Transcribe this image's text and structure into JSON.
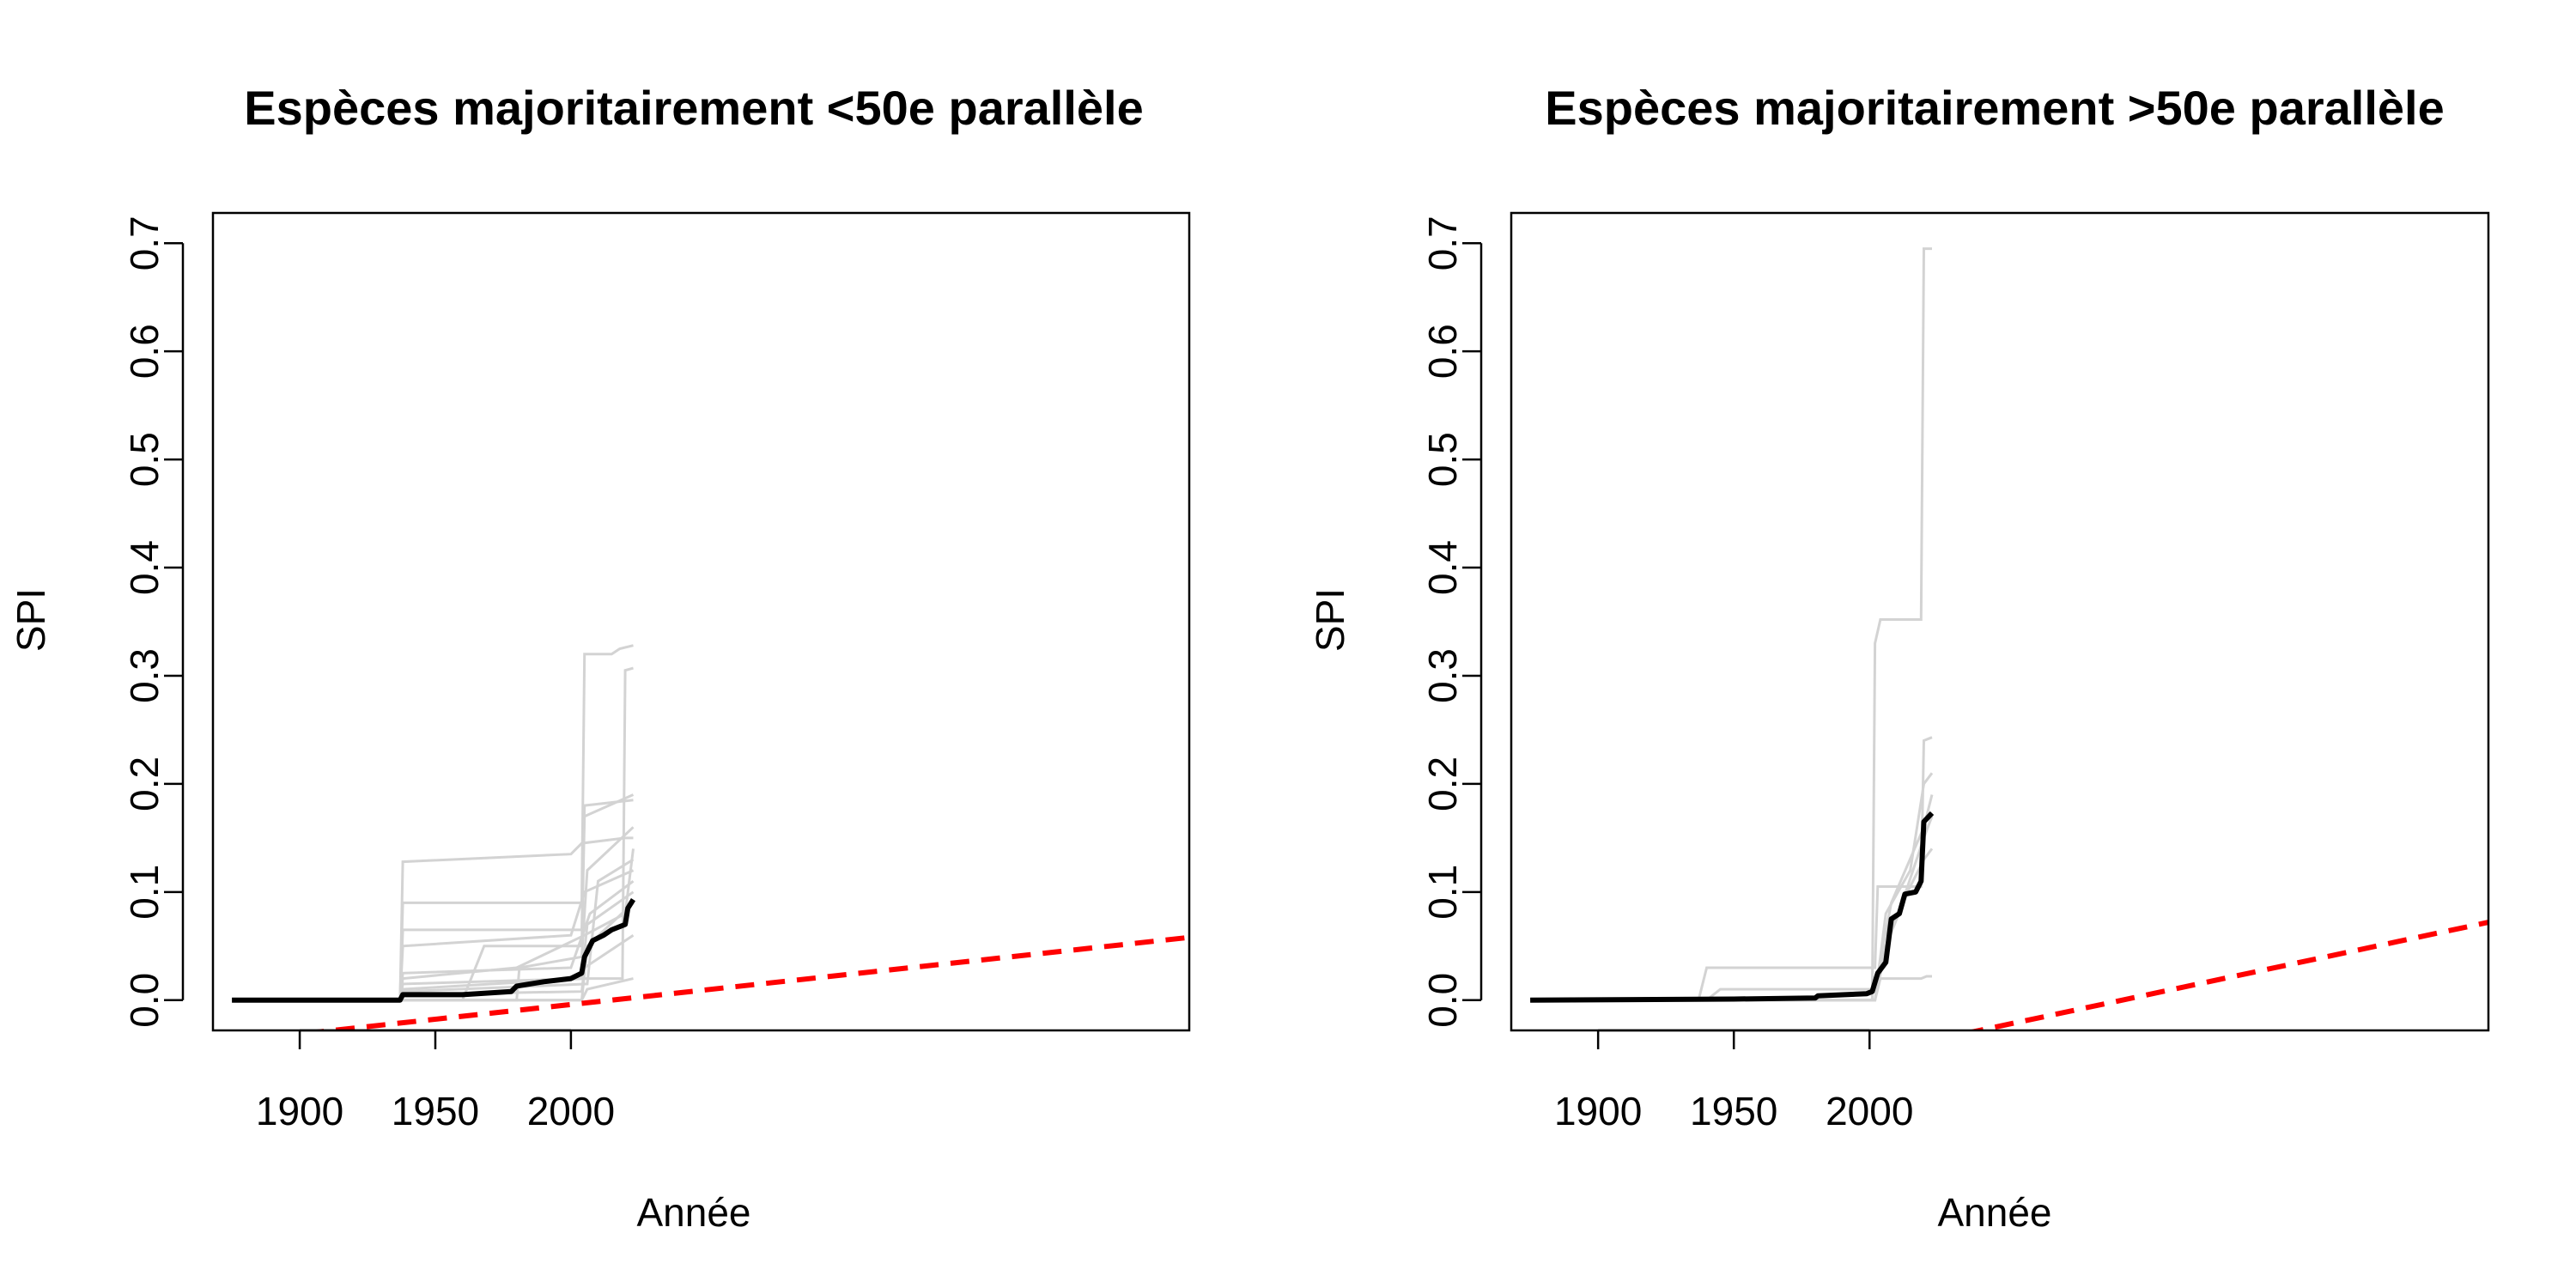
{
  "chart_data": [
    {
      "type": "line",
      "title": "Espèces majoritairement <50e parallèle",
      "xlabel": "Année",
      "ylabel": "SPI",
      "xlim": [
        1868,
        2228
      ],
      "ylim": [
        -0.028,
        0.728
      ],
      "xticks": [
        "1900",
        "1950",
        "2000"
      ],
      "yticks": [
        "0.0",
        "0.1",
        "0.2",
        "0.3",
        "0.4",
        "0.5",
        "0.6",
        "0.7"
      ],
      "grid": false,
      "legend": "none",
      "series": [
        {
          "role": "bootstrap",
          "color": "#d3d3d3",
          "lines": [
            [
              [
                1875,
                0
              ],
              [
                1937,
                0
              ],
              [
                1938,
                0.128
              ],
              [
                2000,
                0.135
              ],
              [
                2004,
                0.145
              ],
              [
                2020,
                0.15
              ],
              [
                2023,
                0.15
              ]
            ],
            [
              [
                1875,
                0
              ],
              [
                1937,
                0
              ],
              [
                1938,
                0.09
              ],
              [
                2004,
                0.09
              ],
              [
                2005,
                0.32
              ],
              [
                2015,
                0.32
              ],
              [
                2018,
                0.325
              ],
              [
                2023,
                0.328
              ]
            ],
            [
              [
                1875,
                0
              ],
              [
                1937,
                0
              ],
              [
                1938,
                0.065
              ],
              [
                2004,
                0.065
              ],
              [
                2005,
                0.18
              ],
              [
                2023,
                0.185
              ]
            ],
            [
              [
                1875,
                0
              ],
              [
                1937,
                0
              ],
              [
                1938,
                0.05
              ],
              [
                2000,
                0.06
              ],
              [
                2005,
                0.1
              ],
              [
                2023,
                0.12
              ]
            ],
            [
              [
                1875,
                0
              ],
              [
                1960,
                0
              ],
              [
                1968,
                0.05
              ],
              [
                2004,
                0.05
              ],
              [
                2005,
                0.17
              ],
              [
                2023,
                0.19
              ]
            ],
            [
              [
                1875,
                0
              ],
              [
                1937,
                0
              ],
              [
                1938,
                0.02
              ],
              [
                1980,
                0.03
              ],
              [
                2005,
                0.06
              ],
              [
                2020,
                0.08
              ],
              [
                2023,
                0.14
              ]
            ],
            [
              [
                1875,
                0
              ],
              [
                1937,
                0
              ],
              [
                1938,
                0.01
              ],
              [
                2005,
                0.02
              ],
              [
                2019,
                0.02
              ],
              [
                2020,
                0.305
              ],
              [
                2023,
                0.307
              ]
            ],
            [
              [
                1875,
                0
              ],
              [
                1937,
                0
              ],
              [
                1938,
                0.015
              ],
              [
                2004,
                0.02
              ],
              [
                2006,
                0.07
              ],
              [
                2023,
                0.1
              ]
            ],
            [
              [
                1875,
                0
              ],
              [
                1937,
                0
              ],
              [
                1938,
                0.005
              ],
              [
                2004,
                0.008
              ],
              [
                2005,
                0.03
              ],
              [
                2023,
                0.06
              ]
            ],
            [
              [
                1875,
                0
              ],
              [
                1980,
                0
              ],
              [
                1981,
                0.03
              ],
              [
                2004,
                0.04
              ],
              [
                2006,
                0.12
              ],
              [
                2023,
                0.16
              ]
            ],
            [
              [
                1875,
                0
              ],
              [
                2004,
                0
              ],
              [
                2006,
                0.05
              ],
              [
                2023,
                0.09
              ]
            ],
            [
              [
                1875,
                0
              ],
              [
                2004,
                0
              ],
              [
                2006,
                0.01
              ],
              [
                2023,
                0.02
              ]
            ],
            [
              [
                1875,
                0
              ],
              [
                1937,
                0
              ],
              [
                1938,
                0.008
              ],
              [
                2006,
                0.015
              ],
              [
                2010,
                0.11
              ],
              [
                2023,
                0.13
              ]
            ],
            [
              [
                1875,
                0
              ],
              [
                1937,
                0
              ],
              [
                1938,
                0.025
              ],
              [
                2000,
                0.03
              ],
              [
                2007,
                0.08
              ],
              [
                2023,
                0.11
              ]
            ]
          ]
        },
        {
          "role": "mean",
          "color": "#000000",
          "values": [
            [
              1875,
              0
            ],
            [
              1937,
              0
            ],
            [
              1938,
              0.005
            ],
            [
              1960,
              0.005
            ],
            [
              1978,
              0.008
            ],
            [
              1980,
              0.013
            ],
            [
              1990,
              0.017
            ],
            [
              2000,
              0.02
            ],
            [
              2004,
              0.025
            ],
            [
              2005,
              0.04
            ],
            [
              2008,
              0.055
            ],
            [
              2012,
              0.06
            ],
            [
              2015,
              0.065
            ],
            [
              2020,
              0.07
            ],
            [
              2021,
              0.085
            ],
            [
              2023,
              0.093
            ]
          ]
        },
        {
          "role": "trend",
          "color": "#ff0000",
          "values": [
            [
              1868,
              -0.04
            ],
            [
              2228,
              0.058
            ]
          ]
        }
      ]
    },
    {
      "type": "line",
      "title": "Espèces majoritairement >50e parallèle",
      "xlabel": "Année",
      "ylabel": "SPI",
      "xlim": [
        1868,
        2228
      ],
      "ylim": [
        -0.028,
        0.728
      ],
      "xticks": [
        "1900",
        "1950",
        "2000"
      ],
      "yticks": [
        "0.0",
        "0.1",
        "0.2",
        "0.3",
        "0.4",
        "0.5",
        "0.6",
        "0.7"
      ],
      "grid": false,
      "legend": "none",
      "series": [
        {
          "role": "bootstrap",
          "color": "#d3d3d3",
          "lines": [
            [
              [
                1875,
                0
              ],
              [
                2001,
                0
              ],
              [
                2002,
                0.33
              ],
              [
                2004,
                0.352
              ],
              [
                2019,
                0.352
              ],
              [
                2020,
                0.695
              ],
              [
                2023,
                0.695
              ]
            ],
            [
              [
                1875,
                0
              ],
              [
                1937,
                0
              ],
              [
                1940,
                0.03
              ],
              [
                2002,
                0.03
              ],
              [
                2003,
                0.105
              ],
              [
                2019,
                0.105
              ],
              [
                2020,
                0.24
              ],
              [
                2023,
                0.243
              ]
            ],
            [
              [
                1875,
                0
              ],
              [
                2002,
                0
              ],
              [
                2004,
                0.02
              ],
              [
                2019,
                0.02
              ],
              [
                2021,
                0.022
              ],
              [
                2023,
                0.022
              ]
            ],
            [
              [
                1875,
                0
              ],
              [
                2002,
                0
              ],
              [
                2006,
                0.08
              ],
              [
                2015,
                0.12
              ],
              [
                2020,
                0.2
              ],
              [
                2023,
                0.21
              ]
            ],
            [
              [
                1875,
                0
              ],
              [
                2002,
                0
              ],
              [
                2007,
                0.06
              ],
              [
                2012,
                0.09
              ],
              [
                2020,
                0.15
              ],
              [
                2023,
                0.17
              ]
            ],
            [
              [
                1875,
                0
              ],
              [
                2002,
                0
              ],
              [
                2006,
                0.05
              ],
              [
                2014,
                0.1
              ],
              [
                2020,
                0.13
              ],
              [
                2023,
                0.14
              ]
            ],
            [
              [
                1875,
                0
              ],
              [
                1940,
                0
              ],
              [
                1945,
                0.01
              ],
              [
                2002,
                0.01
              ],
              [
                2008,
                0.09
              ],
              [
                2020,
                0.16
              ],
              [
                2023,
                0.19
              ]
            ]
          ]
        },
        {
          "role": "mean",
          "color": "#000000",
          "values": [
            [
              1875,
              0
            ],
            [
              1950,
              0.001
            ],
            [
              1980,
              0.002
            ],
            [
              1981,
              0.004
            ],
            [
              1999,
              0.006
            ],
            [
              2001,
              0.008
            ],
            [
              2003,
              0.025
            ],
            [
              2006,
              0.035
            ],
            [
              2008,
              0.075
            ],
            [
              2011,
              0.08
            ],
            [
              2013,
              0.098
            ],
            [
              2017,
              0.1
            ],
            [
              2019,
              0.11
            ],
            [
              2020,
              0.165
            ],
            [
              2023,
              0.173
            ]
          ]
        },
        {
          "role": "trend",
          "color": "#ff0000",
          "values": [
            [
              1868,
              -0.12
            ],
            [
              2228,
              0.072
            ]
          ]
        }
      ]
    }
  ]
}
